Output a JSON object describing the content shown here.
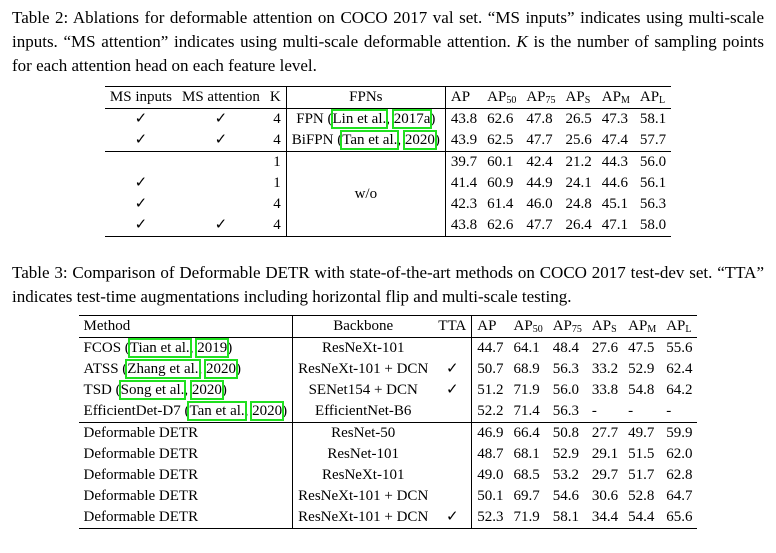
{
  "tables": [
    {
      "caption": [
        {
          "text": "Table 2: Ablations for deformable attention on COCO 2017 val set. “MS inputs” indicates using multi-scale inputs. “MS attention” indicates using multi-scale deformable attention. "
        },
        {
          "text": "K",
          "italic": true
        },
        {
          "text": " is the number of sampling points for each attention head on each feature level."
        }
      ],
      "header": [
        "MS inputs",
        "MS attention",
        "K",
        "FPNs",
        "AP",
        {
          "text": "AP",
          "sub": "50"
        },
        {
          "text": "AP",
          "sub": "75"
        },
        {
          "text": "AP",
          "sub": "S"
        },
        {
          "text": "AP",
          "sub": "M"
        },
        {
          "text": "AP",
          "sub": "L"
        }
      ],
      "groups": [
        {
          "rows": [
            [
              "✓",
              "✓",
              "4",
              [
                {
                  "text": "FPN ("
                },
                {
                  "text": "Lin et al.",
                  "link": true
                },
                {
                  "text": ", "
                },
                {
                  "text": "2017a",
                  "link": true
                },
                {
                  "text": ")"
                }
              ],
              "43.8",
              "62.6",
              "47.8",
              "26.5",
              "47.3",
              "58.1"
            ],
            [
              "✓",
              "✓",
              "4",
              [
                {
                  "text": "BiFPN ("
                },
                {
                  "text": "Tan et al.",
                  "link": true
                },
                {
                  "text": ", "
                },
                {
                  "text": "2020",
                  "link": true
                },
                {
                  "text": ")"
                }
              ],
              "43.9",
              "62.5",
              "47.7",
              "25.6",
              "47.4",
              "57.7"
            ]
          ]
        },
        {
          "merged": "w/o",
          "rows": [
            [
              null,
              null,
              "1",
              "39.7",
              "60.1",
              "42.4",
              "21.2",
              "44.3",
              "56.0"
            ],
            [
              "✓",
              null,
              "1",
              "41.4",
              "60.9",
              "44.9",
              "24.1",
              "44.6",
              "56.1"
            ],
            [
              "✓",
              null,
              "4",
              "42.3",
              "61.4",
              "46.0",
              "24.8",
              "45.1",
              "56.3"
            ],
            [
              "✓",
              "✓",
              "4",
              "43.8",
              "62.6",
              "47.7",
              "26.4",
              "47.1",
              "58.0"
            ]
          ]
        }
      ]
    },
    {
      "caption": [
        {
          "text": "Table 3: Comparison of Deformable DETR with state-of-the-art methods on COCO 2017 test-dev set. “TTA” indicates test-time augmentations including horizontal flip and multi-scale testing."
        }
      ],
      "header": [
        "Method",
        "Backbone",
        "TTA",
        "AP",
        {
          "text": "AP",
          "sub": "50"
        },
        {
          "text": "AP",
          "sub": "75"
        },
        {
          "text": "AP",
          "sub": "S"
        },
        {
          "text": "AP",
          "sub": "M"
        },
        {
          "text": "AP",
          "sub": "L"
        }
      ],
      "groups": [
        {
          "rows": [
            [
              [
                {
                  "text": "FCOS ("
                },
                {
                  "text": "Tian et al.",
                  "link": true
                },
                {
                  "text": ", "
                },
                {
                  "text": "2019",
                  "link": true
                },
                {
                  "text": ")"
                }
              ],
              "ResNeXt-101",
              null,
              "44.7",
              "64.1",
              "48.4",
              "27.6",
              "47.5",
              "55.6"
            ],
            [
              [
                {
                  "text": "ATSS ("
                },
                {
                  "text": "Zhang et al.",
                  "link": true
                },
                {
                  "text": ", "
                },
                {
                  "text": "2020",
                  "link": true
                },
                {
                  "text": ")"
                }
              ],
              "ResNeXt-101 + DCN",
              "✓",
              "50.7",
              "68.9",
              "56.3",
              "33.2",
              "52.9",
              "62.4"
            ],
            [
              [
                {
                  "text": "TSD ("
                },
                {
                  "text": "Song et al.",
                  "link": true
                },
                {
                  "text": ", "
                },
                {
                  "text": "2020",
                  "link": true
                },
                {
                  "text": ")"
                }
              ],
              "SENet154 + DCN",
              "✓",
              "51.2",
              "71.9",
              "56.0",
              "33.8",
              "54.8",
              "64.2"
            ],
            [
              [
                {
                  "text": "EfficientDet-D7 ("
                },
                {
                  "text": "Tan et al.",
                  "link": true
                },
                {
                  "text": ", "
                },
                {
                  "text": "2020",
                  "link": true
                },
                {
                  "text": ")"
                }
              ],
              "EfficientNet-B6",
              null,
              "52.2",
              "71.4",
              "56.3",
              "-",
              "-",
              "-"
            ]
          ]
        },
        {
          "rows": [
            [
              "Deformable DETR",
              "ResNet-50",
              null,
              "46.9",
              "66.4",
              "50.8",
              "27.7",
              "49.7",
              "59.9"
            ],
            [
              "Deformable DETR",
              "ResNet-101",
              null,
              "48.7",
              "68.1",
              "52.9",
              "29.1",
              "51.5",
              "62.0"
            ],
            [
              "Deformable DETR",
              "ResNeXt-101",
              null,
              "49.0",
              "68.5",
              "53.2",
              "29.7",
              "51.7",
              "62.8"
            ],
            [
              "Deformable DETR",
              "ResNeXt-101 + DCN",
              null,
              "50.1",
              "69.7",
              "54.6",
              "30.6",
              "52.8",
              "64.7"
            ],
            [
              "Deformable DETR",
              "ResNeXt-101 + DCN",
              "✓",
              "52.3",
              "71.9",
              "58.1",
              "34.4",
              "54.4",
              "65.6"
            ]
          ]
        }
      ]
    }
  ]
}
